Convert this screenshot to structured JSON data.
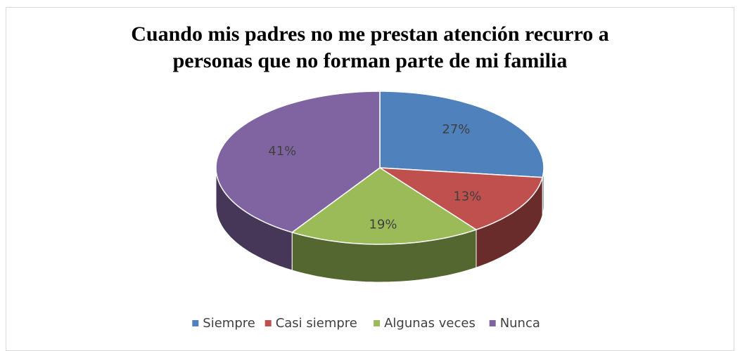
{
  "chart_data": {
    "type": "pie",
    "title": "Cuando mis padres no me prestan atención recurro a personas que no forman parte de mi familia",
    "categories": [
      "Siempre",
      "Casi siempre",
      "Algunas veces",
      "Nunca"
    ],
    "values": [
      27,
      13,
      19,
      41
    ],
    "value_labels": [
      "27%",
      "13%",
      "19%",
      "41%"
    ],
    "colors": [
      "#4f81bd",
      "#c0504d",
      "#9bbb59",
      "#8064a2"
    ],
    "legend": "bottom"
  }
}
